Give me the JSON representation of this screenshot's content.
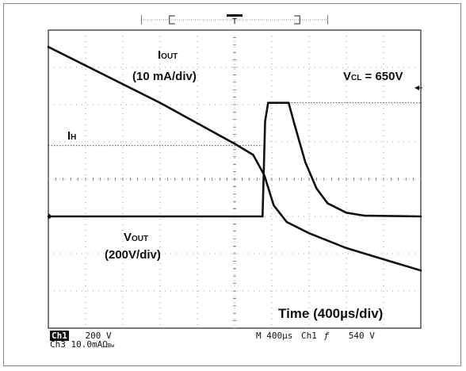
{
  "chart_data": {
    "type": "line",
    "title": "",
    "x_unit": "Time (400µs/div)",
    "grid": true,
    "divisions": {
      "x": 10,
      "y": 8
    },
    "series": [
      {
        "name": "IOUT",
        "label_main": "I",
        "label_sub": "OUT",
        "scale": "(10 mA/div)",
        "color": "#111111",
        "unit_x": "div",
        "unit_y": "div",
        "points": [
          [
            0,
            7.55
          ],
          [
            1,
            7.05
          ],
          [
            2,
            6.55
          ],
          [
            3,
            6.05
          ],
          [
            4,
            5.5
          ],
          [
            5,
            4.95
          ],
          [
            5.5,
            4.65
          ],
          [
            5.8,
            4.1
          ],
          [
            6.05,
            3.3
          ],
          [
            6.4,
            2.85
          ],
          [
            7,
            2.55
          ],
          [
            8,
            2.15
          ],
          [
            9,
            1.85
          ],
          [
            10,
            1.55
          ]
        ]
      },
      {
        "name": "VOUT",
        "label_main": "V",
        "label_sub": "OUT",
        "scale": "(200V/div)",
        "color": "#111111",
        "unit_x": "div",
        "unit_y": "div",
        "points": [
          [
            0,
            3.0
          ],
          [
            5.75,
            3.0
          ],
          [
            5.82,
            5.55
          ],
          [
            5.9,
            6.05
          ],
          [
            6.45,
            6.05
          ],
          [
            6.6,
            5.5
          ],
          [
            6.9,
            4.45
          ],
          [
            7.2,
            3.75
          ],
          [
            7.5,
            3.35
          ],
          [
            8,
            3.1
          ],
          [
            8.5,
            3.02
          ],
          [
            10,
            3.0
          ]
        ]
      }
    ],
    "annotations": {
      "vcl": {
        "main": "V",
        "sub": "CL",
        "rest": " = 650V",
        "level_div": 6.05
      },
      "ih": {
        "main": "I",
        "sub": "H",
        "level_div": 4.9
      }
    },
    "status": {
      "ch1_badge": "Ch1",
      "ch1_scale": "200 V",
      "ch3": "Ch3  10.0mAΩ",
      "ch3_suffix": "Bw",
      "timebase": "M 400µs",
      "trigger_src": "Ch1",
      "trigger_slope": "ƒ",
      "trigger_level": "540 V"
    },
    "trigger_marker": "T"
  }
}
